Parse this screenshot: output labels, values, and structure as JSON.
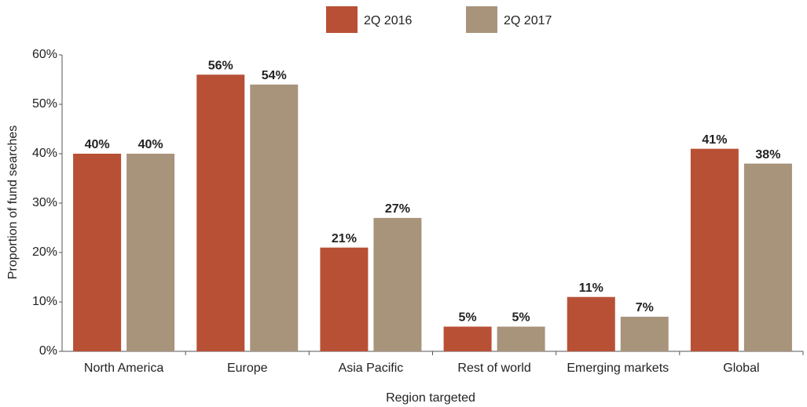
{
  "chart_data": {
    "type": "bar",
    "categories": [
      "North America",
      "Europe",
      "Asia Pacific",
      "Rest of world",
      "Emerging markets",
      "Global"
    ],
    "series": [
      {
        "name": "2Q 2016",
        "color": "#b85035",
        "values": [
          40,
          56,
          21,
          5,
          11,
          41
        ],
        "value_labels": [
          "40%",
          "56%",
          "21%",
          "5%",
          "11%",
          "41%"
        ]
      },
      {
        "name": "2Q 2017",
        "color": "#a8937b",
        "values": [
          40,
          54,
          27,
          5,
          7,
          38
        ],
        "value_labels": [
          "40%",
          "54%",
          "27%",
          "5%",
          "7%",
          "38%"
        ]
      }
    ],
    "ylim": [
      0,
      60
    ],
    "yticks": [
      {
        "value": 0,
        "label": "0%"
      },
      {
        "value": 10,
        "label": "10%"
      },
      {
        "value": 20,
        "label": "20%"
      },
      {
        "value": 30,
        "label": "30%"
      },
      {
        "value": 40,
        "label": "40%"
      },
      {
        "value": 50,
        "label": "50%"
      },
      {
        "value": 60,
        "label": "60%"
      }
    ],
    "x_label": "Region targeted",
    "y_label": "Proportion of fund searches"
  }
}
